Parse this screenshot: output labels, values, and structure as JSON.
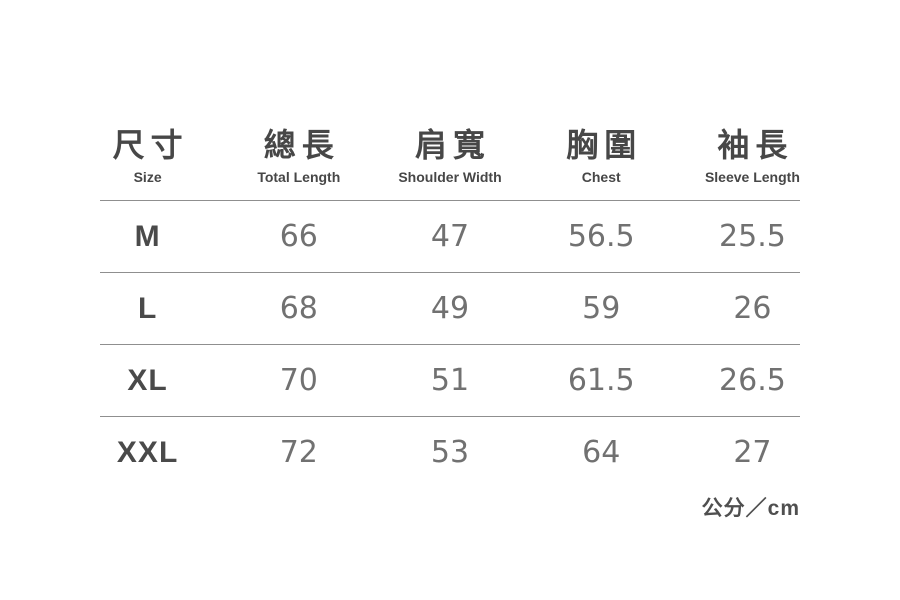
{
  "colors": {
    "background": "#ffffff",
    "header_text": "#474747",
    "size_label_text": "#4a4a4a",
    "value_text": "#717171",
    "divider": "#8f8f8f"
  },
  "table": {
    "columns": [
      {
        "zh": "尺寸",
        "en": "Size"
      },
      {
        "zh": "總長",
        "en": "Total Length"
      },
      {
        "zh": "肩寬",
        "en": "Shoulder Width"
      },
      {
        "zh": "胸圍",
        "en": "Chest"
      },
      {
        "zh": "袖長",
        "en": "Sleeve Length"
      }
    ],
    "rows": [
      {
        "size": "M",
        "values": [
          "66",
          "47",
          "56.5",
          "25.5"
        ]
      },
      {
        "size": "L",
        "values": [
          "68",
          "49",
          "59",
          "26"
        ]
      },
      {
        "size": "XL",
        "values": [
          "70",
          "51",
          "61.5",
          "26.5"
        ]
      },
      {
        "size": "XXL",
        "values": [
          "72",
          "53",
          "64",
          "27"
        ]
      }
    ],
    "unit_note": "公分／cm"
  },
  "chart_data": {
    "type": "table",
    "title": "尺寸 Size Chart",
    "unit": "公分／cm",
    "columns": [
      "尺寸 Size",
      "總長 Total Length",
      "肩寬 Shoulder Width",
      "胸圍 Chest",
      "袖長 Sleeve Length"
    ],
    "rows": [
      [
        "M",
        66,
        47,
        56.5,
        25.5
      ],
      [
        "L",
        68,
        49,
        59,
        26
      ],
      [
        "XL",
        70,
        51,
        61.5,
        26.5
      ],
      [
        "XXL",
        72,
        53,
        64,
        27
      ]
    ]
  }
}
